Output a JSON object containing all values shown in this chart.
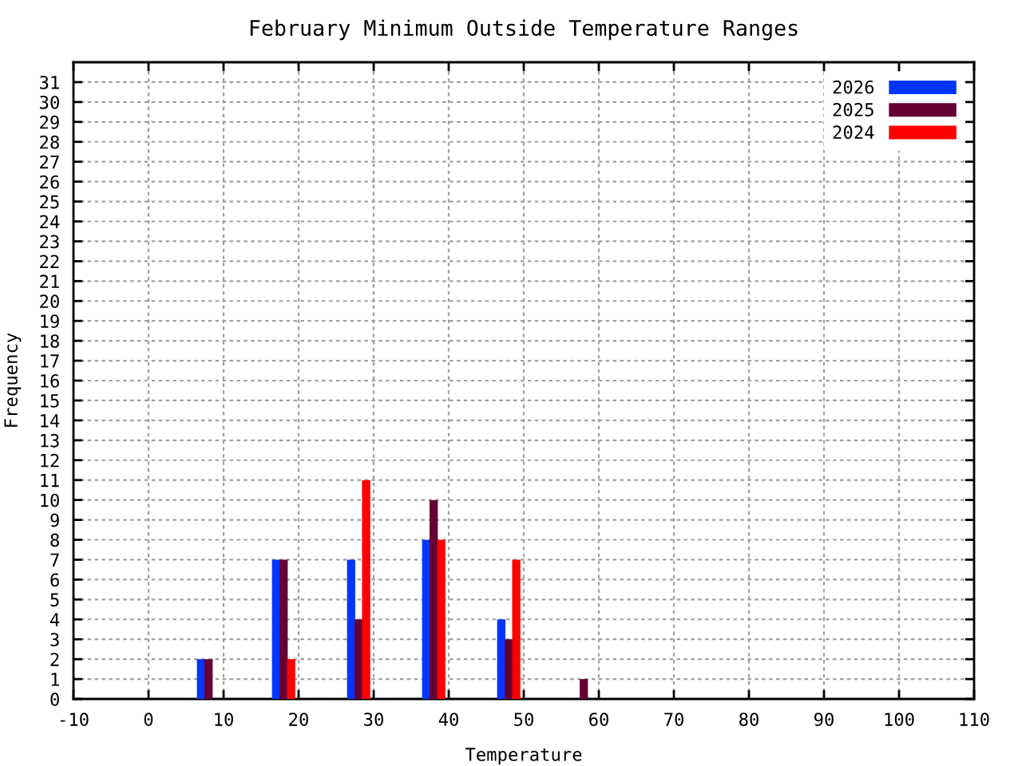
{
  "chart_data": {
    "type": "bar",
    "title": "February Minimum Outside Temperature Ranges",
    "xlabel": "Temperature",
    "ylabel": "Frequency",
    "xlim": [
      -10,
      110
    ],
    "xticks": [
      -10,
      0,
      10,
      20,
      30,
      40,
      50,
      60,
      70,
      80,
      90,
      100,
      110
    ],
    "ylim": [
      0,
      32
    ],
    "yticks": [
      0,
      1,
      2,
      3,
      4,
      5,
      6,
      7,
      8,
      9,
      10,
      11,
      12,
      13,
      14,
      15,
      16,
      17,
      18,
      19,
      20,
      21,
      22,
      23,
      24,
      25,
      26,
      27,
      28,
      29,
      30,
      31
    ],
    "grid": true,
    "legend": "top right",
    "series": [
      {
        "name": "2026",
        "color": "#0036ff",
        "x": [
          7,
          17,
          27,
          37,
          47
        ],
        "values": [
          2,
          7,
          7,
          8,
          4
        ]
      },
      {
        "name": "2025",
        "color": "#650035",
        "x": [
          8,
          18,
          28,
          38,
          48,
          58
        ],
        "values": [
          2,
          7,
          4,
          10,
          3,
          1
        ]
      },
      {
        "name": "2024",
        "color": "#ff0000",
        "x": [
          19,
          29,
          39,
          49
        ],
        "values": [
          2,
          11,
          8,
          7
        ]
      }
    ]
  }
}
